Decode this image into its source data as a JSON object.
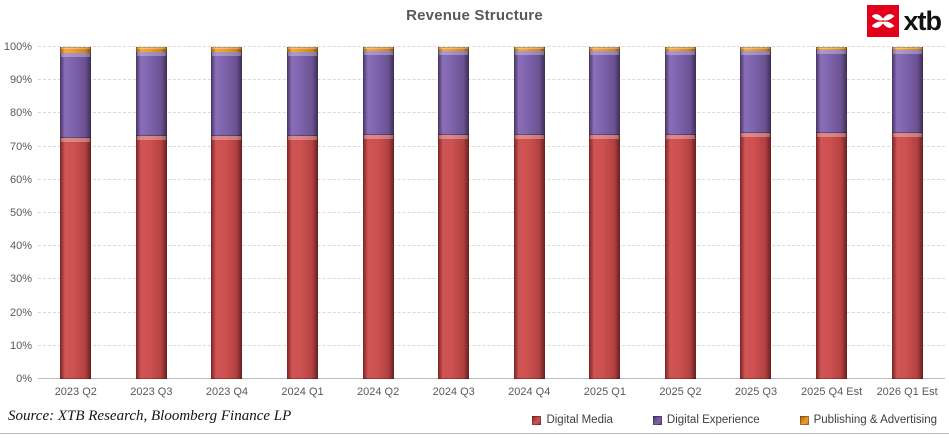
{
  "header": {
    "title": "Revenue Structure",
    "logo": {
      "text": "xtb",
      "icon": "xtb-swallow-x-icon",
      "brand_red": "#e3001b"
    }
  },
  "chart_data": {
    "type": "bar",
    "stacked": true,
    "stack_unit": "percent",
    "title": "Revenue Structure",
    "categories": [
      "2023 Q2",
      "2023 Q3",
      "2023 Q4",
      "2024 Q1",
      "2024 Q2",
      "2024 Q3",
      "2024 Q4",
      "2025 Q1",
      "2025 Q2",
      "2025 Q3",
      "2025 Q4 Est",
      "2026 Q1 Est"
    ],
    "series": [
      {
        "name": "Digital Media",
        "color": "#c0392b",
        "values": [
          72.5,
          73.3,
          73.3,
          73.3,
          73.4,
          73.6,
          73.5,
          73.5,
          73.5,
          74.0,
          74.2,
          74.0
        ]
      },
      {
        "name": "Digital Experience",
        "color": "#7d63ab",
        "values": [
          25.8,
          25.2,
          25.2,
          25.2,
          25.3,
          25.1,
          25.2,
          25.3,
          25.3,
          24.9,
          24.8,
          25.0
        ]
      },
      {
        "name": "Publishing & Advertising",
        "color": "#eb9c2e",
        "values": [
          1.7,
          1.5,
          1.5,
          1.5,
          1.3,
          1.3,
          1.3,
          1.2,
          1.2,
          1.1,
          1.0,
          1.0
        ]
      }
    ],
    "ylim": [
      0,
      100
    ],
    "yticks": [
      "0%",
      "10%",
      "20%",
      "30%",
      "40%",
      "50%",
      "60%",
      "70%",
      "80%",
      "90%",
      "100%"
    ],
    "grid": "horizontal-dashed",
    "legend_position": "bottom-right"
  },
  "footer": {
    "source": "Source: XTB Research, Bloomberg Finance LP"
  }
}
